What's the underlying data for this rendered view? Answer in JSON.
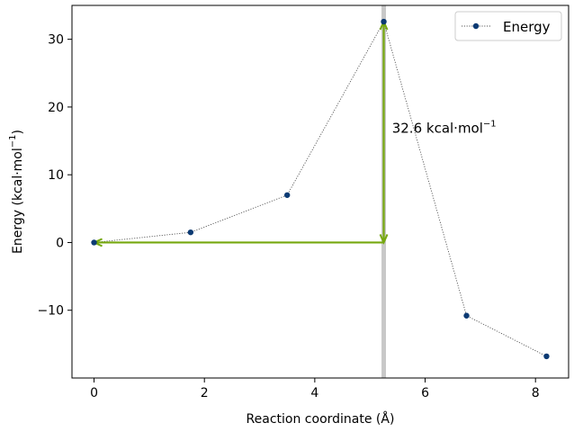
{
  "chart_data": {
    "type": "line",
    "xlabel": "Reaction coordinate (Å)",
    "ylabel_main": "Energy (kcal·mol",
    "ylabel_sup": "−1",
    "ylabel_close": ")",
    "xlim": [
      -0.4,
      8.6
    ],
    "ylim": [
      -20,
      35
    ],
    "xticks": [
      0,
      2,
      4,
      6,
      8
    ],
    "xtick_labels": [
      "0",
      "2",
      "4",
      "6",
      "8"
    ],
    "yticks": [
      -10,
      0,
      10,
      20,
      30
    ],
    "ytick_labels": [
      "−10",
      "0",
      "10",
      "20",
      "30"
    ],
    "legend_position": "top-right",
    "series": [
      {
        "name": "Energy",
        "x": [
          0.0,
          1.75,
          3.5,
          5.25,
          6.75,
          8.2
        ],
        "y": [
          0.0,
          1.5,
          7.0,
          32.6,
          -10.8,
          -16.8
        ]
      }
    ],
    "annotation": {
      "text_main": "32.6 kcal·mol",
      "text_sup": "−1",
      "transition_x": 5.25,
      "reference_y": 0.0,
      "peak_y": 32.6,
      "text_x": 5.4,
      "text_y": 16.2
    },
    "colors": {
      "marker": "#0c3a73",
      "line": "#555555",
      "arrow": "#76a80f",
      "vline": "#c8c8c8"
    }
  }
}
